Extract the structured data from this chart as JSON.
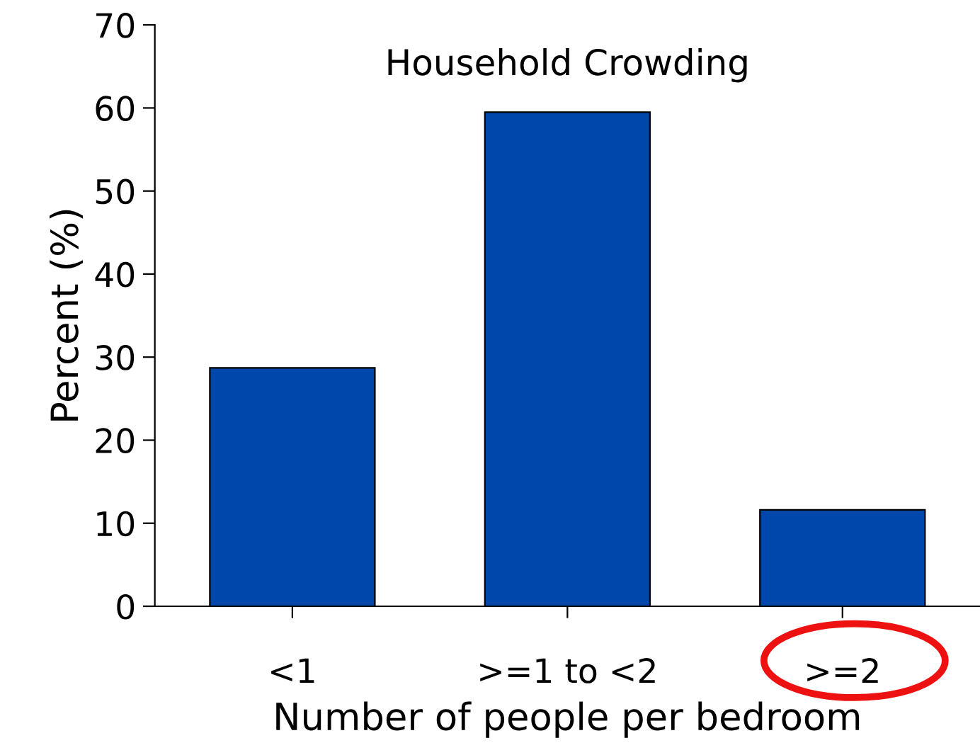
{
  "chart_data": {
    "type": "bar",
    "title": "Household Crowding",
    "xlabel": "Number of people per bedroom",
    "ylabel": "Percent (%)",
    "categories": [
      "<1",
      ">=1 to <2",
      ">=2"
    ],
    "values": [
      28.7,
      59.5,
      11.6
    ],
    "color": "#0047ab",
    "ylim": [
      0,
      70
    ],
    "yticks": [
      0,
      10,
      20,
      30,
      40,
      50,
      60,
      70
    ],
    "grid": false,
    "legend": false
  }
}
